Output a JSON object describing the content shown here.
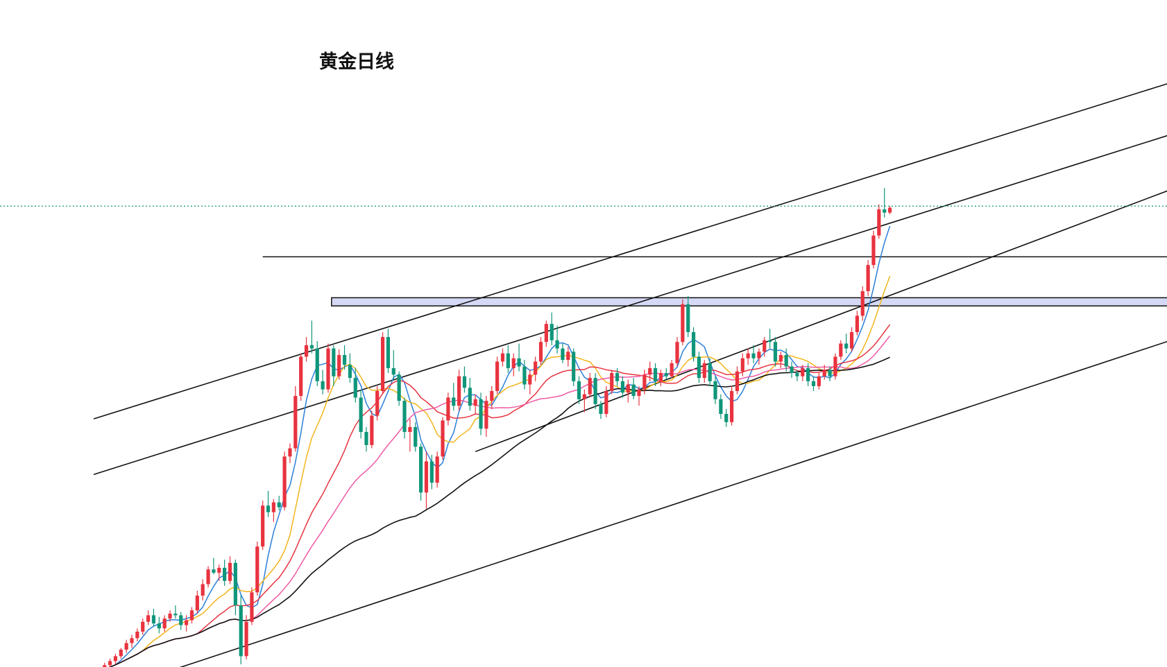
{
  "chart_data": {
    "type": "candlestick",
    "title": "黄金日线",
    "xlabel": "",
    "ylabel": "",
    "ylim": [
      1490,
      2100
    ],
    "grid": false,
    "colors": {
      "up": "#e8333f",
      "down": "#10967a",
      "ma5": "#2a7fd8",
      "ma10": "#f2b51a",
      "ma20": "#e8333f",
      "ma30": "#ee5aa5",
      "ma60": "#111111",
      "current_price_line": "#10967a",
      "resistance_zone_fill": "#d6d9f5",
      "trendline": "#111111"
    },
    "candles": [
      [
        1488,
        1493,
        1484,
        1490
      ],
      [
        1490,
        1496,
        1486,
        1494
      ],
      [
        1494,
        1502,
        1490,
        1499
      ],
      [
        1499,
        1507,
        1495,
        1504
      ],
      [
        1504,
        1513,
        1500,
        1510
      ],
      [
        1510,
        1520,
        1507,
        1518
      ],
      [
        1518,
        1530,
        1514,
        1526
      ],
      [
        1526,
        1536,
        1520,
        1532
      ],
      [
        1532,
        1544,
        1528,
        1540
      ],
      [
        1540,
        1556,
        1536,
        1552
      ],
      [
        1552,
        1566,
        1548,
        1560
      ],
      [
        1560,
        1568,
        1546,
        1550
      ],
      [
        1550,
        1558,
        1538,
        1544
      ],
      [
        1544,
        1560,
        1540,
        1556
      ],
      [
        1556,
        1566,
        1552,
        1562
      ],
      [
        1562,
        1572,
        1556,
        1560
      ],
      [
        1560,
        1564,
        1542,
        1548
      ],
      [
        1548,
        1560,
        1540,
        1554
      ],
      [
        1554,
        1570,
        1550,
        1566
      ],
      [
        1566,
        1590,
        1562,
        1584
      ],
      [
        1584,
        1604,
        1578,
        1598
      ],
      [
        1598,
        1620,
        1594,
        1616
      ],
      [
        1616,
        1630,
        1610,
        1612
      ],
      [
        1612,
        1622,
        1602,
        1618
      ],
      [
        1618,
        1628,
        1596,
        1602
      ],
      [
        1602,
        1632,
        1598,
        1624
      ],
      [
        1624,
        1628,
        1560,
        1572
      ],
      [
        1572,
        1584,
        1500,
        1510
      ],
      [
        1510,
        1560,
        1506,
        1552
      ],
      [
        1552,
        1594,
        1548,
        1588
      ],
      [
        1588,
        1650,
        1584,
        1644
      ],
      [
        1644,
        1700,
        1640,
        1694
      ],
      [
        1694,
        1712,
        1680,
        1686
      ],
      [
        1686,
        1702,
        1674,
        1698
      ],
      [
        1698,
        1706,
        1688,
        1692
      ],
      [
        1692,
        1760,
        1688,
        1754
      ],
      [
        1754,
        1770,
        1746,
        1764
      ],
      [
        1764,
        1840,
        1760,
        1828
      ],
      [
        1828,
        1880,
        1822,
        1876
      ],
      [
        1876,
        1900,
        1870,
        1890
      ],
      [
        1890,
        1920,
        1880,
        1886
      ],
      [
        1886,
        1895,
        1840,
        1846
      ],
      [
        1846,
        1860,
        1830,
        1836
      ],
      [
        1836,
        1892,
        1832,
        1886
      ],
      [
        1886,
        1890,
        1840,
        1852
      ],
      [
        1852,
        1885,
        1848,
        1878
      ],
      [
        1878,
        1890,
        1860,
        1866
      ],
      [
        1866,
        1880,
        1844,
        1850
      ],
      [
        1850,
        1862,
        1820,
        1826
      ],
      [
        1826,
        1836,
        1776,
        1784
      ],
      [
        1784,
        1790,
        1760,
        1768
      ],
      [
        1768,
        1810,
        1764,
        1804
      ],
      [
        1804,
        1840,
        1798,
        1834
      ],
      [
        1834,
        1906,
        1830,
        1900
      ],
      [
        1900,
        1910,
        1856,
        1862
      ],
      [
        1862,
        1884,
        1848,
        1854
      ],
      [
        1854,
        1858,
        1816,
        1822
      ],
      [
        1822,
        1826,
        1776,
        1784
      ],
      [
        1784,
        1800,
        1760,
        1790
      ],
      [
        1790,
        1796,
        1760,
        1766
      ],
      [
        1766,
        1770,
        1700,
        1710
      ],
      [
        1710,
        1760,
        1690,
        1748
      ],
      [
        1748,
        1756,
        1714,
        1722
      ],
      [
        1722,
        1760,
        1716,
        1754
      ],
      [
        1754,
        1802,
        1750,
        1798
      ],
      [
        1798,
        1832,
        1792,
        1826
      ],
      [
        1826,
        1844,
        1810,
        1816
      ],
      [
        1816,
        1860,
        1810,
        1852
      ],
      [
        1852,
        1864,
        1832,
        1838
      ],
      [
        1838,
        1850,
        1810,
        1816
      ],
      [
        1816,
        1830,
        1806,
        1824
      ],
      [
        1824,
        1832,
        1780,
        1788
      ],
      [
        1788,
        1828,
        1778,
        1822
      ],
      [
        1822,
        1840,
        1812,
        1834
      ],
      [
        1834,
        1876,
        1830,
        1870
      ],
      [
        1870,
        1886,
        1864,
        1880
      ],
      [
        1880,
        1890,
        1856,
        1862
      ],
      [
        1862,
        1880,
        1852,
        1874
      ],
      [
        1874,
        1892,
        1858,
        1864
      ],
      [
        1864,
        1872,
        1836,
        1842
      ],
      [
        1842,
        1860,
        1830,
        1854
      ],
      [
        1854,
        1876,
        1846,
        1870
      ],
      [
        1870,
        1900,
        1866,
        1894
      ],
      [
        1894,
        1920,
        1888,
        1916
      ],
      [
        1916,
        1930,
        1890,
        1896
      ],
      [
        1896,
        1914,
        1880,
        1886
      ],
      [
        1886,
        1892,
        1868,
        1872
      ],
      [
        1872,
        1888,
        1864,
        1882
      ],
      [
        1882,
        1886,
        1840,
        1846
      ],
      [
        1846,
        1852,
        1818,
        1824
      ],
      [
        1824,
        1836,
        1808,
        1830
      ],
      [
        1830,
        1856,
        1826,
        1850
      ],
      [
        1850,
        1856,
        1812,
        1818
      ],
      [
        1818,
        1822,
        1800,
        1806
      ],
      [
        1806,
        1840,
        1802,
        1834
      ],
      [
        1834,
        1860,
        1830,
        1856
      ],
      [
        1856,
        1862,
        1840,
        1846
      ],
      [
        1846,
        1852,
        1826,
        1832
      ],
      [
        1832,
        1848,
        1820,
        1842
      ],
      [
        1842,
        1850,
        1824,
        1828
      ],
      [
        1828,
        1840,
        1816,
        1836
      ],
      [
        1836,
        1860,
        1830,
        1854
      ],
      [
        1854,
        1870,
        1846,
        1862
      ],
      [
        1862,
        1868,
        1840,
        1846
      ],
      [
        1846,
        1860,
        1840,
        1856
      ],
      [
        1856,
        1862,
        1848,
        1852
      ],
      [
        1852,
        1872,
        1850,
        1868
      ],
      [
        1868,
        1900,
        1864,
        1894
      ],
      [
        1894,
        1946,
        1890,
        1940
      ],
      [
        1940,
        1950,
        1900,
        1906
      ],
      [
        1906,
        1912,
        1870,
        1876
      ],
      [
        1876,
        1882,
        1844,
        1850
      ],
      [
        1850,
        1872,
        1844,
        1868
      ],
      [
        1868,
        1874,
        1840,
        1846
      ],
      [
        1846,
        1852,
        1818,
        1824
      ],
      [
        1824,
        1830,
        1800,
        1806
      ],
      [
        1806,
        1812,
        1790,
        1796
      ],
      [
        1796,
        1840,
        1792,
        1834
      ],
      [
        1834,
        1864,
        1830,
        1858
      ],
      [
        1858,
        1880,
        1852,
        1874
      ],
      [
        1874,
        1886,
        1866,
        1880
      ],
      [
        1880,
        1890,
        1868,
        1874
      ],
      [
        1874,
        1886,
        1866,
        1882
      ],
      [
        1882,
        1900,
        1876,
        1896
      ],
      [
        1896,
        1910,
        1886,
        1894
      ],
      [
        1894,
        1900,
        1864,
        1870
      ],
      [
        1870,
        1882,
        1862,
        1878
      ],
      [
        1878,
        1886,
        1858,
        1864
      ],
      [
        1864,
        1870,
        1850,
        1856
      ],
      [
        1856,
        1860,
        1846,
        1852
      ],
      [
        1852,
        1866,
        1846,
        1862
      ],
      [
        1862,
        1868,
        1840,
        1846
      ],
      [
        1846,
        1852,
        1834,
        1840
      ],
      [
        1840,
        1856,
        1836,
        1852
      ],
      [
        1852,
        1866,
        1848,
        1860
      ],
      [
        1860,
        1864,
        1846,
        1852
      ],
      [
        1852,
        1880,
        1848,
        1876
      ],
      [
        1876,
        1896,
        1872,
        1892
      ],
      [
        1892,
        1904,
        1880,
        1886
      ],
      [
        1886,
        1912,
        1882,
        1906
      ],
      [
        1906,
        1932,
        1902,
        1926
      ],
      [
        1926,
        1962,
        1920,
        1956
      ],
      [
        1956,
        1994,
        1950,
        1988
      ],
      [
        1988,
        2030,
        1984,
        2024
      ],
      [
        2024,
        2062,
        2020,
        2056
      ],
      [
        2056,
        2082,
        2046,
        2052
      ],
      [
        2052,
        2060,
        2050,
        2058
      ]
    ],
    "moving_averages": [
      {
        "period": 5
      },
      {
        "period": 10
      },
      {
        "period": 20
      },
      {
        "period": 30
      },
      {
        "period": 60
      }
    ],
    "current_price": 2060,
    "horizontal_lines": [
      {
        "price": 1998,
        "from_candle": 31
      }
    ],
    "resistance_zone": {
      "top": 1948,
      "bottom": 1938,
      "from_candle": 44
    },
    "channel_lines": [
      {
        "from": [
          0,
          1800
        ],
        "to": [
          213,
          2243
        ]
      },
      {
        "from": [
          0,
          1732
        ],
        "to": [
          213,
          2180
        ]
      },
      {
        "from": [
          70,
          1760
        ],
        "to": [
          213,
          2119
        ]
      },
      {
        "from": [
          13,
          1490
        ],
        "to": [
          213,
          1930
        ]
      }
    ]
  }
}
